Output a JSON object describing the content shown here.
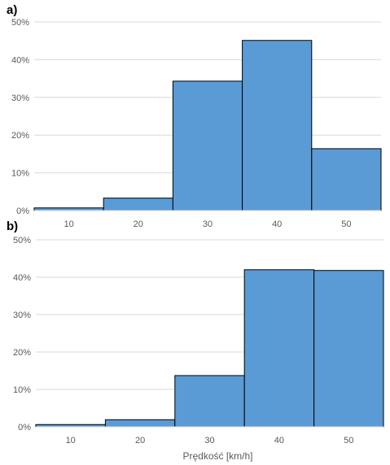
{
  "chart_data": [
    {
      "type": "bar",
      "panel_label": "a)",
      "categories": [
        "10",
        "20",
        "30",
        "40",
        "50"
      ],
      "values": [
        0.7,
        3.3,
        34.3,
        45.1,
        16.4
      ],
      "y_ticks": [
        "0%",
        "10%",
        "20%",
        "30%",
        "40%",
        "50%"
      ],
      "ylim": [
        0,
        50
      ],
      "xlabel": "",
      "grid": true,
      "colors": {
        "bar_fill": "#5b9bd5",
        "bar_stroke": "#000000",
        "grid": "#d9d9d9"
      }
    },
    {
      "type": "bar",
      "panel_label": "b)",
      "categories": [
        "10",
        "20",
        "30",
        "40",
        "50"
      ],
      "values": [
        0.6,
        1.9,
        13.7,
        42.0,
        41.8
      ],
      "y_ticks": [
        "0%",
        "10%",
        "20%",
        "30%",
        "40%",
        "50%"
      ],
      "ylim": [
        0,
        50
      ],
      "xlabel": "Prędkość [km/h]",
      "grid": true,
      "colors": {
        "bar_fill": "#5b9bd5",
        "bar_stroke": "#000000",
        "grid": "#d9d9d9"
      }
    }
  ]
}
